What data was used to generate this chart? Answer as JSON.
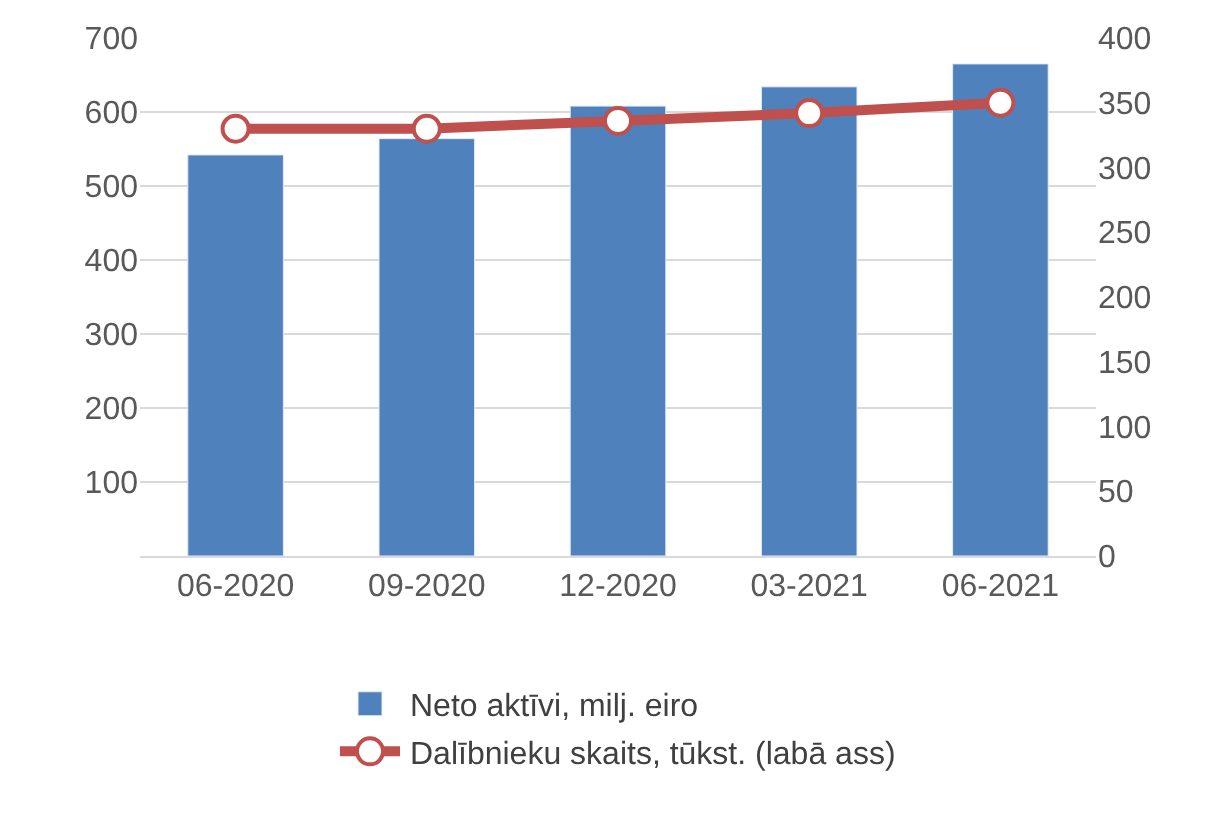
{
  "chart_data": {
    "type": "bar",
    "categories": [
      "06-2020",
      "09-2020",
      "12-2020",
      "03-2021",
      "06-2021"
    ],
    "series": [
      {
        "name": "Neto aktīvi, milj. eiro",
        "color": "#4f81bd",
        "values": [
          542,
          564,
          608,
          634,
          665
        ]
      },
      {
        "name": "Dalībnieku skaits, tūkst. (labā ass)",
        "type": "line",
        "axis": "y2",
        "color": "#c0504d",
        "marker": "circle",
        "values": [
          330,
          330,
          336,
          342,
          350
        ]
      }
    ],
    "ylim": [
      0,
      700
    ],
    "yticks": [
      {
        "value": 0,
        "label": null
      },
      100,
      200,
      300,
      400,
      500,
      600,
      700
    ],
    "y2lim": [
      0,
      400
    ],
    "y2ticks": [
      0,
      50,
      100,
      150,
      200,
      250,
      300,
      350,
      400
    ],
    "grid": "y",
    "legend": "bottom"
  }
}
